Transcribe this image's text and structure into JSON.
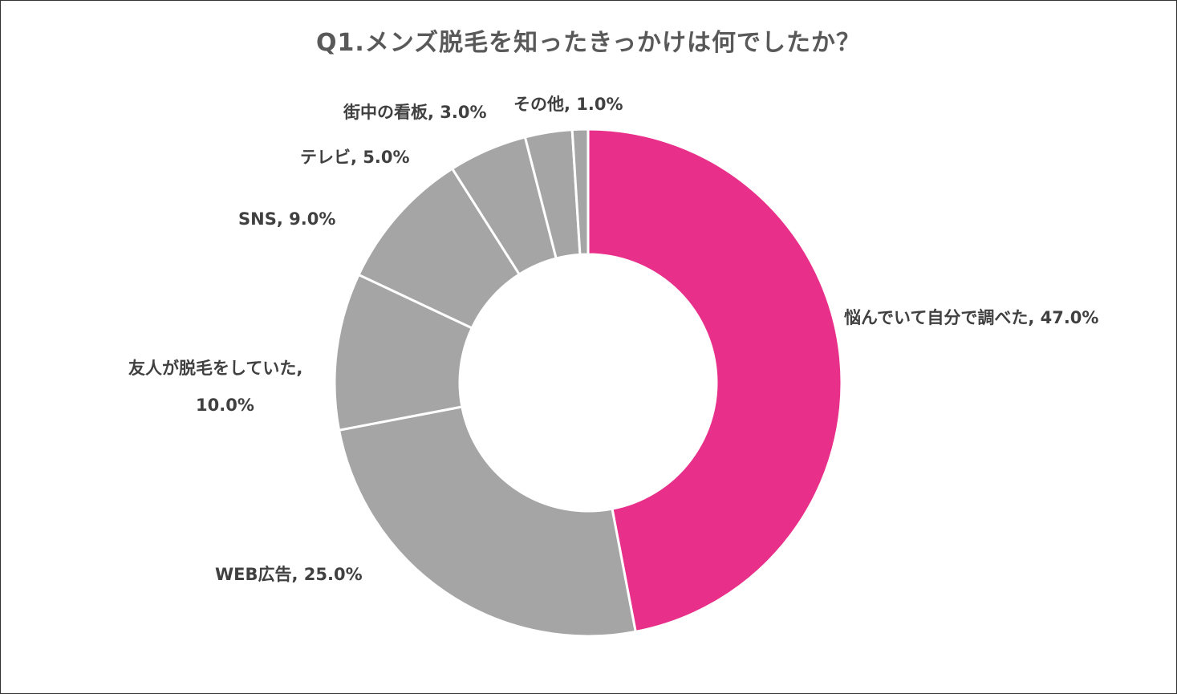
{
  "chart_data": {
    "type": "pie",
    "title": "Q1.メンズ脱毛を知ったきっかけは何でしたか？",
    "donut": true,
    "slices": [
      {
        "label": "悩んでいて自分で調べた",
        "value": 47.0,
        "display": "悩んでいて自分で調べた, 47.0%",
        "color": "#E8308A"
      },
      {
        "label": "WEB広告",
        "value": 25.0,
        "display": "WEB広告, 25.0%",
        "color": "#A5A5A5"
      },
      {
        "label": "友人が脱毛をしていた",
        "value": 10.0,
        "display": "友人が脱毛をしていた,",
        "display2": "10.0%",
        "color": "#A5A5A5"
      },
      {
        "label": "SNS",
        "value": 9.0,
        "display": "SNS, 9.0%",
        "color": "#A5A5A5"
      },
      {
        "label": "テレビ",
        "value": 5.0,
        "display": "テレビ, 5.0%",
        "color": "#A5A5A5"
      },
      {
        "label": "街中の看板",
        "value": 3.0,
        "display": "街中の看板, 3.0%",
        "color": "#A5A5A5"
      },
      {
        "label": "その他",
        "value": 1.0,
        "display": "その他, 1.0%",
        "color": "#A5A5A5"
      }
    ]
  }
}
